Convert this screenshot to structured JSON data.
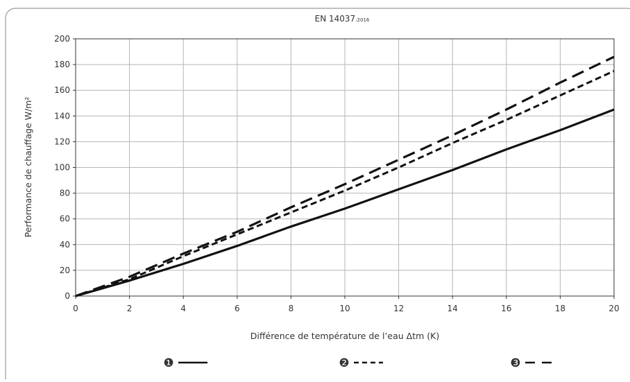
{
  "chart_data": {
    "type": "line",
    "title": "EN 14037",
    "title_suffix": ":2016",
    "xlabel": "Différence de température de l’eau Δtm (K)",
    "ylabel": "Performance de chauffage W/m²",
    "xlim": [
      0,
      20
    ],
    "ylim": [
      0,
      200
    ],
    "x_ticks": [
      0,
      2,
      4,
      6,
      8,
      10,
      12,
      14,
      16,
      18,
      20
    ],
    "y_ticks": [
      0,
      20,
      40,
      60,
      80,
      100,
      120,
      140,
      160,
      180,
      200
    ],
    "grid": true,
    "legend_position": "bottom",
    "series": [
      {
        "marker": "❶",
        "style": "solid",
        "x": [
          0,
          2,
          4,
          6,
          8,
          10,
          12,
          14,
          16,
          18,
          20
        ],
        "y": [
          0,
          12,
          25,
          39,
          54,
          68,
          83,
          98,
          114,
          129,
          145
        ]
      },
      {
        "marker": "❷",
        "style": "dotted",
        "x": [
          0,
          2,
          4,
          6,
          8,
          10,
          12,
          14,
          16,
          18,
          20
        ],
        "y": [
          0,
          13,
          31,
          48,
          65,
          82,
          100,
          119,
          137,
          156,
          175
        ]
      },
      {
        "marker": "❸",
        "style": "dashed",
        "x": [
          0,
          2,
          4,
          6,
          8,
          10,
          12,
          14,
          16,
          18,
          20
        ],
        "y": [
          0,
          15,
          33,
          50,
          69,
          87,
          106,
          125,
          145,
          166,
          186
        ]
      }
    ]
  }
}
